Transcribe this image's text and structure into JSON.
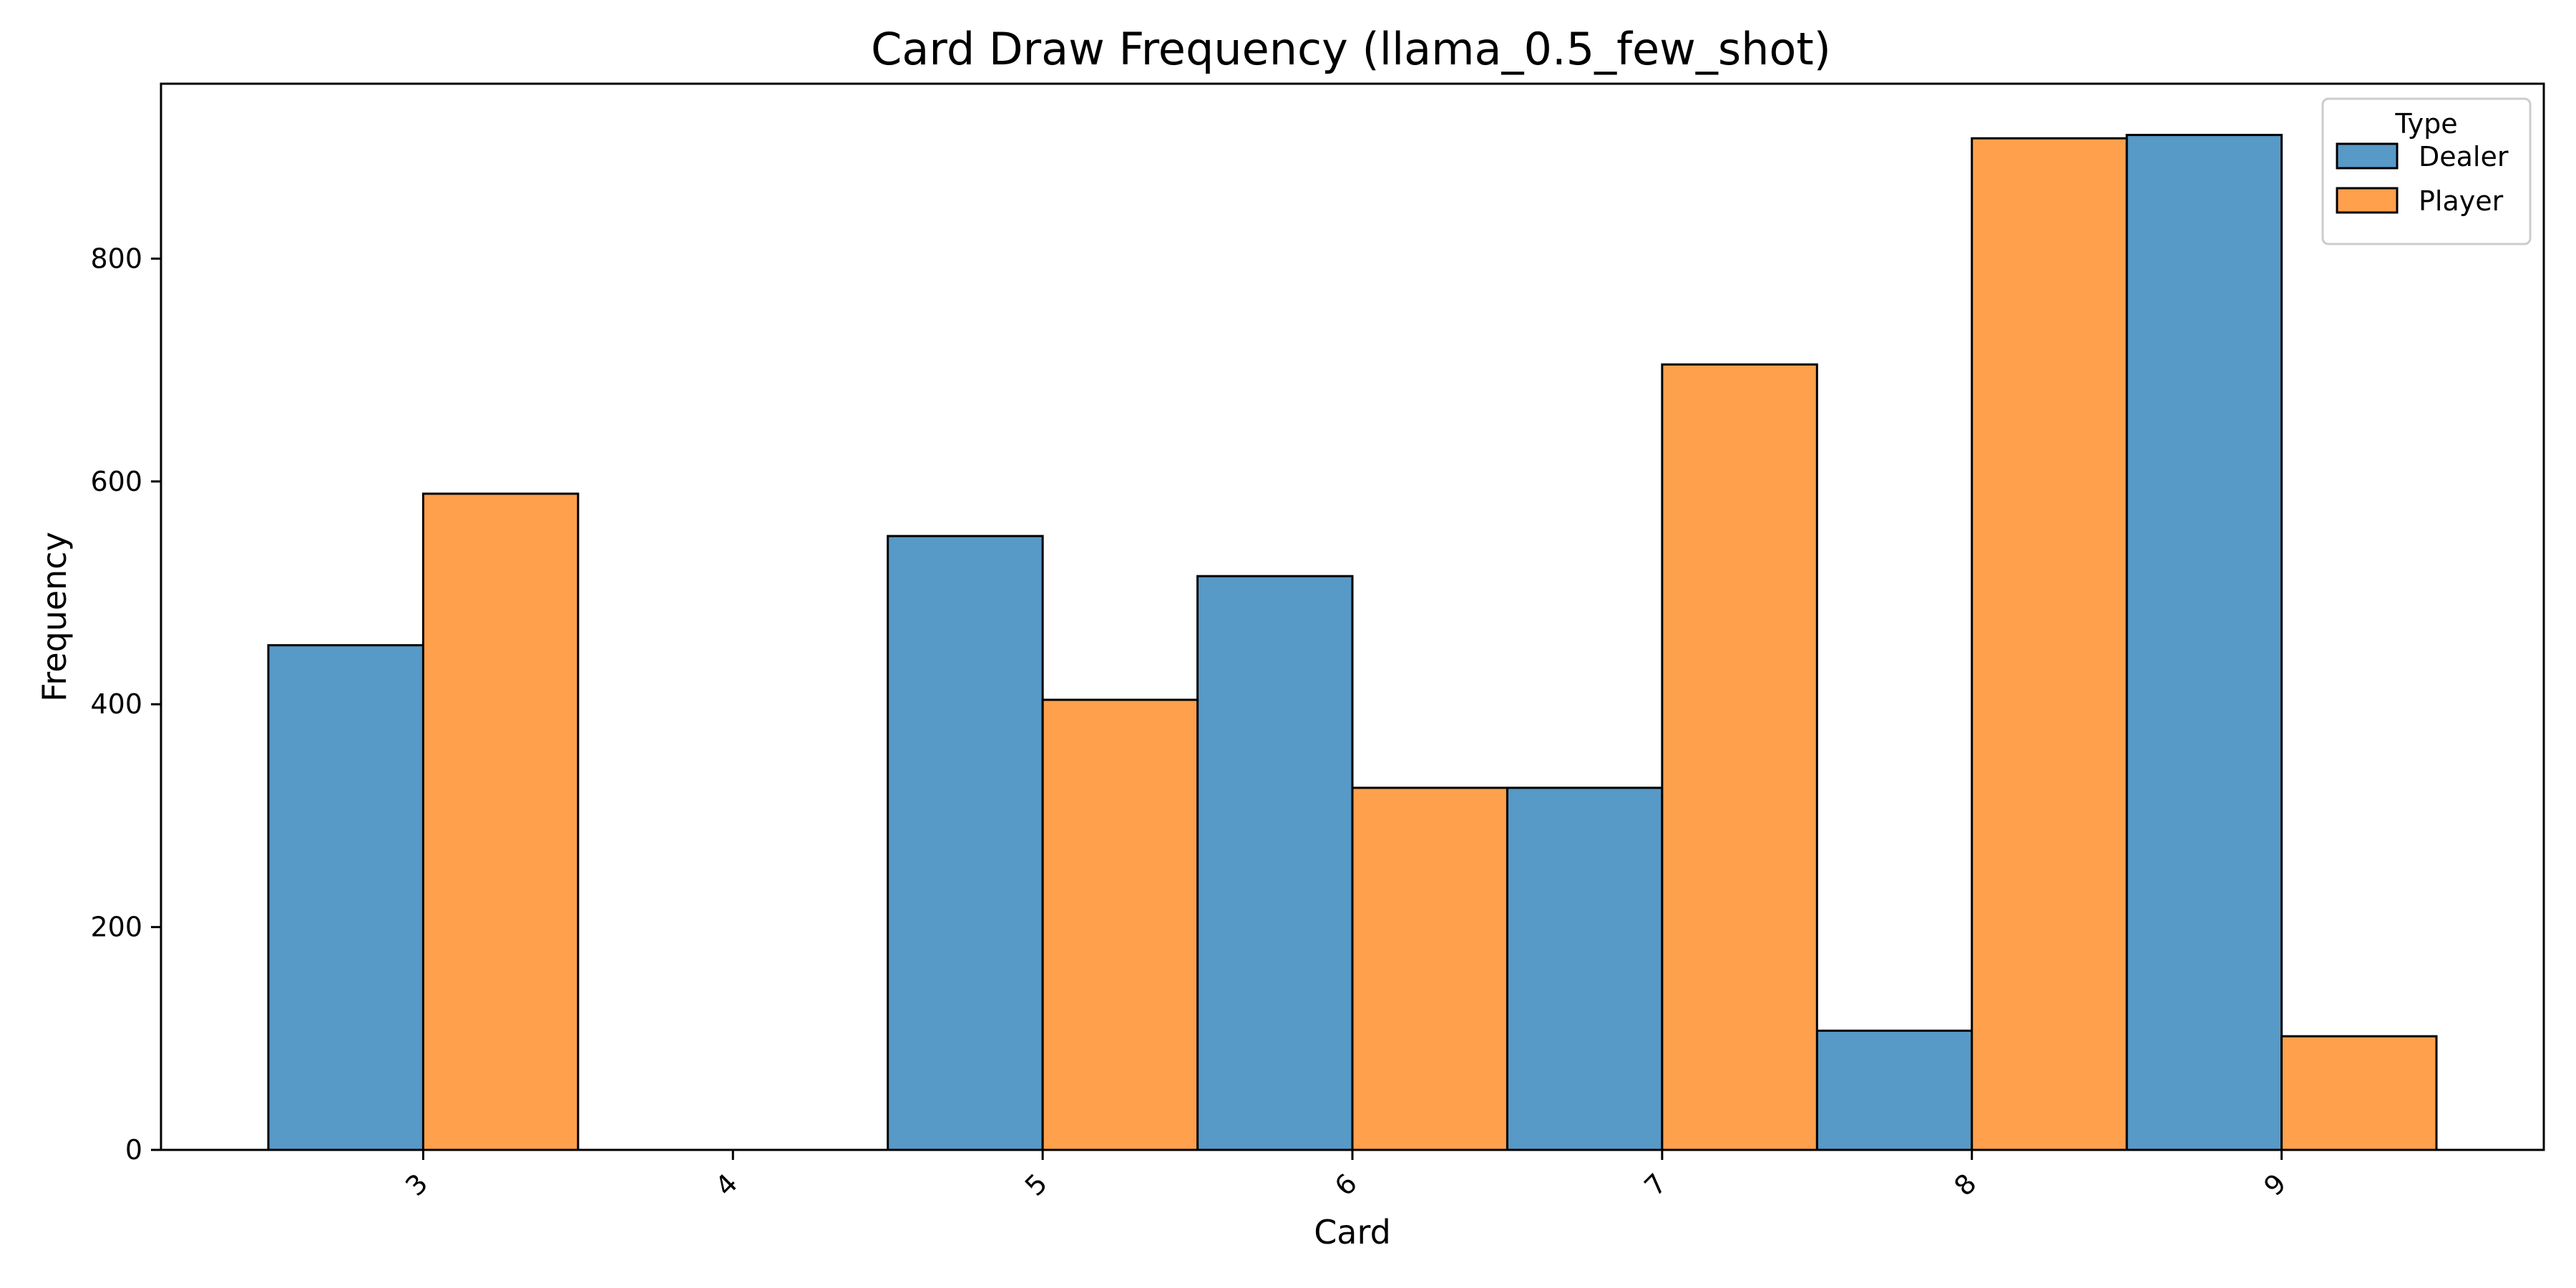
{
  "chart_data": {
    "type": "bar",
    "title": "Card Draw Frequency (llama_0.5_few_shot)",
    "xlabel": "Card",
    "ylabel": "Frequency",
    "categories": [
      "3",
      "4",
      "5",
      "6",
      "7",
      "8",
      "9"
    ],
    "series": [
      {
        "name": "Dealer",
        "color": "#5799c7",
        "values": [
          453,
          0,
          551,
          515,
          325,
          107,
          911
        ]
      },
      {
        "name": "Player",
        "color": "#ffa04c",
        "values": [
          589,
          0,
          404,
          325,
          705,
          908,
          102
        ]
      }
    ],
    "ylim": [
      0,
      957
    ],
    "yticks": [
      0,
      200,
      400,
      600,
      800
    ],
    "grid": false,
    "legend": {
      "title": "Type",
      "position": "top-right"
    }
  }
}
